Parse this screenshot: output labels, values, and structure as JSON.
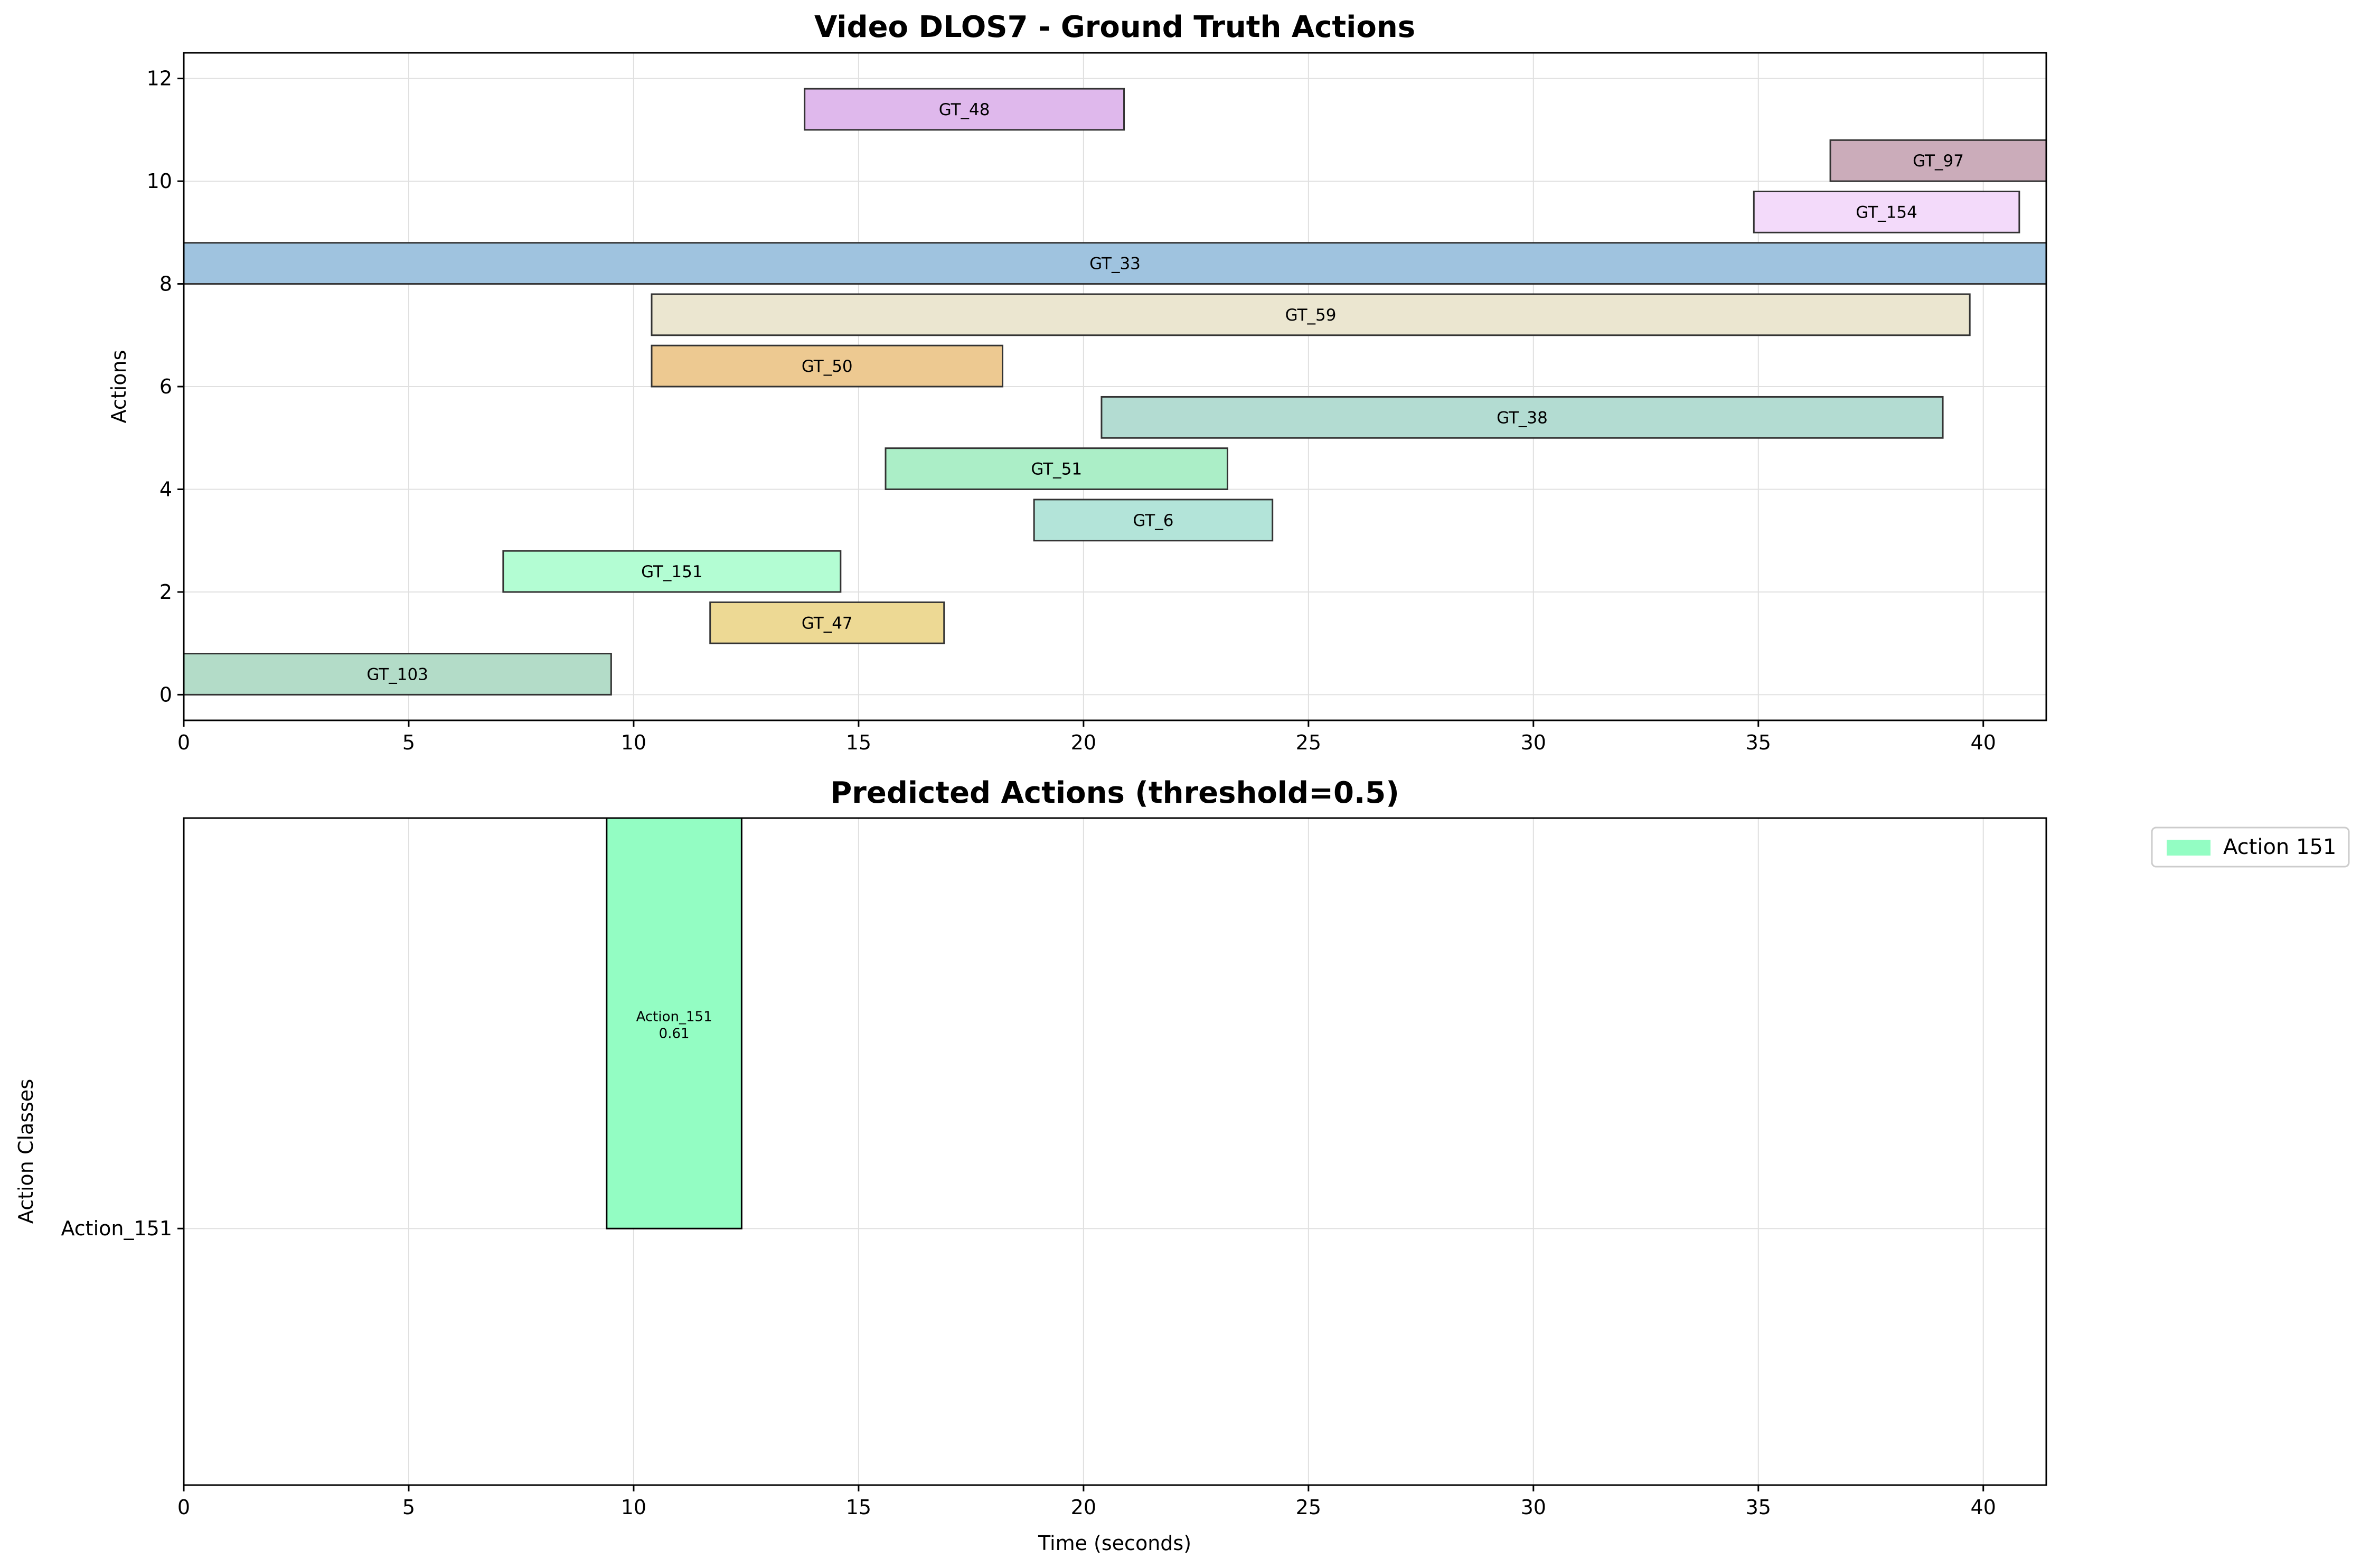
{
  "chart_data": [
    {
      "type": "bar",
      "orientation": "horizontal-intervals",
      "title": "Video DLOS7 - Ground Truth Actions",
      "xlabel": "",
      "ylabel": "Actions",
      "xlim": [
        0,
        41.4
      ],
      "ylim": [
        -0.5,
        12.5
      ],
      "xticks": [
        "0",
        "5",
        "10",
        "15",
        "20",
        "25",
        "30",
        "35",
        "40"
      ],
      "yticks": [
        "0",
        "2",
        "4",
        "6",
        "8",
        "10",
        "12"
      ],
      "grid": true,
      "bar_height": 0.8,
      "bars": [
        {
          "label": "GT_103",
          "start": 0.0,
          "end": 9.5,
          "y": 0,
          "color": "#b3dcc8"
        },
        {
          "label": "GT_47",
          "start": 11.7,
          "end": 16.9,
          "y": 1,
          "color": "#edd994"
        },
        {
          "label": "GT_151",
          "start": 7.1,
          "end": 14.6,
          "y": 2,
          "color": "#b3fdd3"
        },
        {
          "label": "GT_6",
          "start": 18.9,
          "end": 24.2,
          "y": 3,
          "color": "#b3e4d9"
        },
        {
          "label": "GT_51",
          "start": 15.6,
          "end": 23.2,
          "y": 4,
          "color": "#abeec7"
        },
        {
          "label": "GT_38",
          "start": 20.4,
          "end": 39.1,
          "y": 5,
          "color": "#b3dcd2"
        },
        {
          "label": "GT_50",
          "start": 10.4,
          "end": 18.2,
          "y": 6,
          "color": "#edc991"
        },
        {
          "label": "GT_59",
          "start": 10.4,
          "end": 39.7,
          "y": 7,
          "color": "#ebe6d0"
        },
        {
          "label": "GT_33",
          "start": 0.0,
          "end": 41.4,
          "y": 8,
          "color": "#9fc3df"
        },
        {
          "label": "GT_154",
          "start": 34.9,
          "end": 40.8,
          "y": 9,
          "color": "#f3dafa"
        },
        {
          "label": "GT_97",
          "start": 36.6,
          "end": 41.4,
          "y": 10,
          "color": "#cbacba"
        },
        {
          "label": "GT_48",
          "start": 13.8,
          "end": 20.9,
          "y": 11,
          "color": "#dfb8ec"
        }
      ]
    },
    {
      "type": "bar",
      "orientation": "horizontal-intervals",
      "title": "Predicted Actions (threshold=0.5)",
      "xlabel": "Time (seconds)",
      "ylabel": "Action Classes",
      "xlim": [
        0,
        41.4
      ],
      "ylim": [
        -0.5,
        0.8
      ],
      "xticks": [
        "0",
        "5",
        "10",
        "15",
        "20",
        "25",
        "30",
        "35",
        "40"
      ],
      "ytick_labels": [
        "Action_151"
      ],
      "grid": true,
      "legend": {
        "placement": "outside-top-right",
        "entries": [
          {
            "label": "Action 151",
            "color": "#93fdc3"
          }
        ]
      },
      "bars": [
        {
          "class": "Action_151",
          "start": 9.4,
          "end": 12.4,
          "y": 0,
          "height": 0.8,
          "color": "#93fdc3",
          "label_line1": "Action_151",
          "label_line2": "0.61"
        }
      ]
    }
  ]
}
